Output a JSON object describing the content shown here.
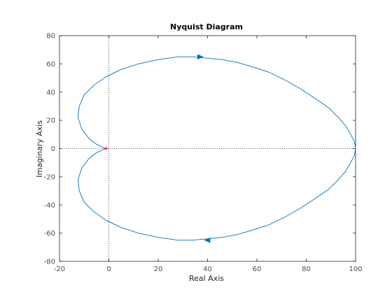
{
  "chart_data": {
    "type": "line",
    "title": "Nyquist Diagram",
    "xlabel": "Real Axis",
    "ylabel": "Imaginary Axis",
    "xlim": [
      -20,
      100
    ],
    "ylim": [
      -80,
      80
    ],
    "xticks": [
      -20,
      0,
      20,
      40,
      60,
      80,
      100
    ],
    "yticks": [
      -80,
      -60,
      -40,
      -20,
      0,
      20,
      40,
      60,
      80
    ],
    "grid": false,
    "reference_lines": [
      "x = 0 (dotted)",
      "y = 0 (dotted)"
    ],
    "critical_point": [
      -1,
      0
    ],
    "series": [
      {
        "color": "#0072bd",
        "points": [
          [
            100,
            0
          ],
          [
            99.5,
            5
          ],
          [
            98,
            10
          ],
          [
            96,
            16
          ],
          [
            93,
            22
          ],
          [
            89,
            29
          ],
          [
            84,
            35
          ],
          [
            78,
            42
          ],
          [
            72,
            48
          ],
          [
            65,
            54
          ],
          [
            58,
            58
          ],
          [
            52,
            61
          ],
          [
            46,
            63
          ],
          [
            40,
            64
          ],
          [
            34,
            65
          ],
          [
            28,
            65
          ],
          [
            20,
            63
          ],
          [
            12,
            60
          ],
          [
            5,
            56
          ],
          [
            -1,
            51
          ],
          [
            -6,
            45
          ],
          [
            -10,
            38
          ],
          [
            -12,
            30
          ],
          [
            -12.5,
            22
          ],
          [
            -11,
            14
          ],
          [
            -8,
            7
          ],
          [
            -5,
            3
          ],
          [
            -2,
            0.5
          ],
          [
            -1,
            0
          ]
        ],
        "mirror": true,
        "arrows": [
          [
            37,
            65
          ],
          [
            40,
            -65
          ]
        ]
      }
    ]
  },
  "colors": {
    "line": "#0072bd",
    "axes": "#262626",
    "reference": "#262626",
    "critical_marker": "#d62728"
  }
}
